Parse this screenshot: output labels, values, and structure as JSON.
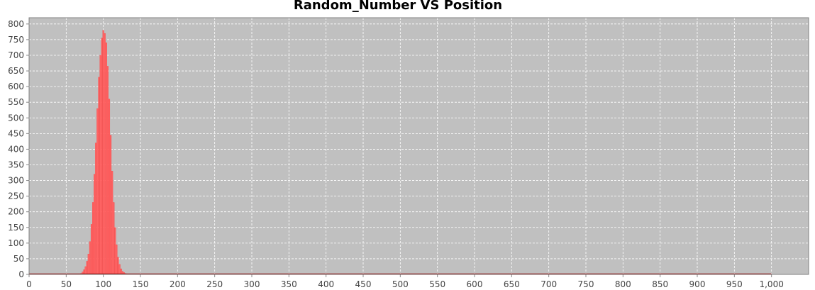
{
  "chart_data": {
    "type": "bar",
    "title": "Random_Number VS Position",
    "xlabel": "",
    "ylabel": "",
    "xlim": [
      0,
      1050
    ],
    "ylim": [
      0,
      820
    ],
    "grid": true,
    "legend": "none",
    "colors": {
      "background": "#c0c0c0",
      "bar": "#ff6666",
      "bar_outline": "#ff3333",
      "baseline": "#990000",
      "grid": "#ffffff"
    },
    "x_ticks": [
      0,
      50,
      100,
      150,
      200,
      250,
      300,
      350,
      400,
      450,
      500,
      550,
      600,
      650,
      700,
      750,
      800,
      850,
      900,
      950,
      1000
    ],
    "x_tick_labels": [
      "0",
      "50",
      "100",
      "150",
      "200",
      "250",
      "300",
      "350",
      "400",
      "450",
      "500",
      "550",
      "600",
      "650",
      "700",
      "750",
      "800",
      "850",
      "900",
      "950",
      "1,000"
    ],
    "y_ticks": [
      0,
      50,
      100,
      150,
      200,
      250,
      300,
      350,
      400,
      450,
      500,
      550,
      600,
      650,
      700,
      750,
      800
    ],
    "y_tick_labels": [
      "0",
      "50",
      "100",
      "150",
      "200",
      "250",
      "300",
      "350",
      "400",
      "450",
      "500",
      "550",
      "600",
      "650",
      "700",
      "750",
      "800"
    ],
    "series": [
      {
        "name": "Random_Number",
        "x": [
          70,
          72,
          74,
          76,
          78,
          80,
          82,
          84,
          86,
          88,
          90,
          92,
          94,
          96,
          98,
          100,
          102,
          104,
          106,
          108,
          110,
          112,
          114,
          116,
          118,
          120,
          122,
          124,
          126,
          128,
          130,
          132,
          134
        ],
        "values": [
          3,
          8,
          15,
          25,
          42,
          65,
          105,
          160,
          230,
          320,
          420,
          530,
          630,
          700,
          755,
          780,
          770,
          740,
          665,
          560,
          445,
          330,
          230,
          150,
          95,
          55,
          32,
          18,
          10,
          6,
          3,
          2,
          1
        ]
      }
    ]
  }
}
